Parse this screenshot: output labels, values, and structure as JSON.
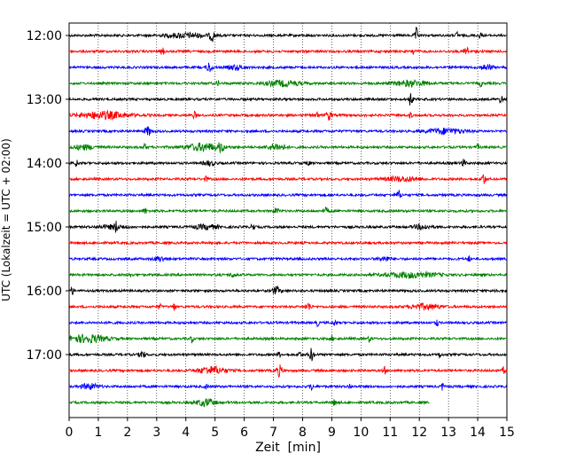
{
  "chart_data": {
    "type": "line",
    "title": "",
    "xlabel": "Zeit  [min]",
    "ylabel": "UTC (Lokalzeit = UTC + 02:00)",
    "xlim": [
      0,
      15
    ],
    "x_ticks": [
      0,
      1,
      2,
      3,
      4,
      5,
      6,
      7,
      8,
      9,
      10,
      11,
      12,
      13,
      14,
      15
    ],
    "y_tick_labels": [
      "12:00",
      "13:00",
      "14:00",
      "15:00",
      "16:00",
      "17:00"
    ],
    "grid": "vertical dotted lines at each minute",
    "trace_colors": [
      "#000000",
      "#ff0000",
      "#0000ff",
      "#008000"
    ],
    "traces": [
      {
        "start": "12:00",
        "color": "#000000",
        "x_end": 15,
        "events": [
          [
            4.0,
            2.5,
            0.7
          ],
          [
            4.9,
            6,
            0.08
          ],
          [
            11.9,
            8,
            0.06
          ],
          [
            13.3,
            4,
            0.05
          ],
          [
            14.1,
            4,
            0.05
          ]
        ]
      },
      {
        "start": "12:15",
        "color": "#ff0000",
        "x_end": 15,
        "events": [
          [
            3.2,
            4,
            0.06
          ],
          [
            11.8,
            4,
            0.06
          ],
          [
            13.6,
            6,
            0.08
          ]
        ]
      },
      {
        "start": "12:30",
        "color": "#0000ff",
        "x_end": 15,
        "events": [
          [
            4.8,
            6,
            0.08
          ],
          [
            5.7,
            2.5,
            0.25
          ],
          [
            14.3,
            3,
            0.2
          ]
        ]
      },
      {
        "start": "12:45",
        "color": "#008000",
        "x_end": 15,
        "events": [
          [
            5.1,
            3,
            0.05
          ],
          [
            7.3,
            3,
            0.6
          ],
          [
            11.7,
            3,
            0.6
          ],
          [
            14.1,
            3,
            0.05
          ]
        ]
      },
      {
        "start": "13:00",
        "color": "#000000",
        "x_end": 15,
        "events": [
          [
            11.7,
            8,
            0.06
          ],
          [
            14.8,
            5,
            0.05
          ]
        ]
      },
      {
        "start": "13:15",
        "color": "#ff0000",
        "x_end": 15,
        "events": [
          [
            1.2,
            4,
            0.8
          ],
          [
            4.3,
            4,
            0.05
          ],
          [
            8.5,
            4,
            0.06
          ],
          [
            8.9,
            5,
            0.1
          ],
          [
            11.7,
            3,
            0.05
          ]
        ]
      },
      {
        "start": "13:30",
        "color": "#0000ff",
        "x_end": 15,
        "events": [
          [
            2.7,
            5,
            0.1
          ],
          [
            12.9,
            3,
            0.6
          ]
        ]
      },
      {
        "start": "13:45",
        "color": "#008000",
        "x_end": 15,
        "events": [
          [
            0.5,
            2.5,
            0.4
          ],
          [
            2.6,
            3,
            0.05
          ],
          [
            4.6,
            4,
            0.6
          ],
          [
            5.2,
            5,
            0.08
          ],
          [
            7.1,
            3.5,
            0.3
          ],
          [
            14.0,
            3,
            0.05
          ]
        ]
      },
      {
        "start": "14:00",
        "color": "#000000",
        "x_end": 15,
        "events": [
          [
            0.25,
            4,
            0.05
          ],
          [
            4.8,
            2.5,
            0.2
          ],
          [
            8.2,
            3,
            0.05
          ],
          [
            13.5,
            4,
            0.08
          ]
        ]
      },
      {
        "start": "14:15",
        "color": "#ff0000",
        "x_end": 15,
        "events": [
          [
            4.7,
            3,
            0.05
          ],
          [
            11.4,
            2.5,
            0.6
          ],
          [
            14.2,
            7,
            0.06
          ]
        ]
      },
      {
        "start": "14:30",
        "color": "#0000ff",
        "x_end": 15,
        "events": [
          [
            11.3,
            4,
            0.08
          ]
        ]
      },
      {
        "start": "14:45",
        "color": "#008000",
        "x_end": 15,
        "events": [
          [
            2.6,
            4,
            0.05
          ],
          [
            7.1,
            3,
            0.1
          ],
          [
            8.8,
            3,
            0.1
          ]
        ]
      },
      {
        "start": "15:00",
        "color": "#000000",
        "x_end": 15,
        "events": [
          [
            1.5,
            2,
            0.5
          ],
          [
            1.6,
            5,
            0.05
          ],
          [
            4.7,
            2.5,
            0.4
          ],
          [
            6.3,
            6,
            0.05
          ],
          [
            12.1,
            2.5,
            0.3
          ]
        ]
      },
      {
        "start": "15:15",
        "color": "#ff0000",
        "x_end": 15,
        "events": []
      },
      {
        "start": "15:30",
        "color": "#0000ff",
        "x_end": 15,
        "events": [
          [
            3.1,
            2.5,
            0.2
          ],
          [
            10.8,
            2.5,
            0.2
          ],
          [
            13.7,
            3,
            0.05
          ]
        ]
      },
      {
        "start": "15:45",
        "color": "#008000",
        "x_end": 15,
        "events": [
          [
            2.1,
            3,
            0.05
          ],
          [
            5.6,
            2.5,
            0.1
          ],
          [
            11.7,
            3,
            0.9
          ]
        ]
      },
      {
        "start": "16:00",
        "color": "#000000",
        "x_end": 15,
        "events": [
          [
            0.1,
            4,
            0.05
          ],
          [
            7.1,
            4,
            0.15
          ],
          [
            14.6,
            4,
            0.05
          ]
        ]
      },
      {
        "start": "16:15",
        "color": "#ff0000",
        "x_end": 15,
        "events": [
          [
            3.1,
            3,
            0.05
          ],
          [
            3.6,
            4,
            0.05
          ],
          [
            8.2,
            4,
            0.1
          ],
          [
            12.2,
            3,
            0.5
          ]
        ]
      },
      {
        "start": "16:30",
        "color": "#0000ff",
        "x_end": 15,
        "events": [
          [
            1.4,
            3,
            0.05
          ],
          [
            8.5,
            4,
            0.05
          ],
          [
            9.1,
            3,
            0.05
          ],
          [
            12.6,
            4,
            0.05
          ]
        ]
      },
      {
        "start": "16:45",
        "color": "#008000",
        "x_end": 15,
        "events": [
          [
            0.6,
            4,
            0.7
          ],
          [
            4.2,
            4,
            0.05
          ],
          [
            9.0,
            3,
            0.05
          ],
          [
            10.3,
            4,
            0.05
          ]
        ]
      },
      {
        "start": "17:00",
        "color": "#000000",
        "x_end": 15,
        "events": [
          [
            2.5,
            4,
            0.1
          ],
          [
            7.2,
            3,
            0.05
          ],
          [
            7.9,
            4,
            0.05
          ],
          [
            8.3,
            7,
            0.08
          ],
          [
            12.7,
            3,
            0.05
          ]
        ]
      },
      {
        "start": "17:15",
        "color": "#ff0000",
        "x_end": 15,
        "events": [
          [
            4.9,
            4,
            0.5
          ],
          [
            7.2,
            6,
            0.1
          ],
          [
            10.8,
            4,
            0.05
          ],
          [
            14.9,
            4,
            0.05
          ]
        ]
      },
      {
        "start": "17:30",
        "color": "#0000ff",
        "x_end": 15,
        "events": [
          [
            0.7,
            3,
            0.3
          ],
          [
            4.7,
            3,
            0.05
          ],
          [
            8.3,
            4,
            0.05
          ],
          [
            9.6,
            3,
            0.05
          ],
          [
            12.8,
            4,
            0.05
          ]
        ]
      },
      {
        "start": "17:45",
        "color": "#008000",
        "x_end": 12.35,
        "events": [
          [
            4.7,
            4,
            0.3
          ],
          [
            9.1,
            4,
            0.05
          ]
        ]
      }
    ]
  }
}
